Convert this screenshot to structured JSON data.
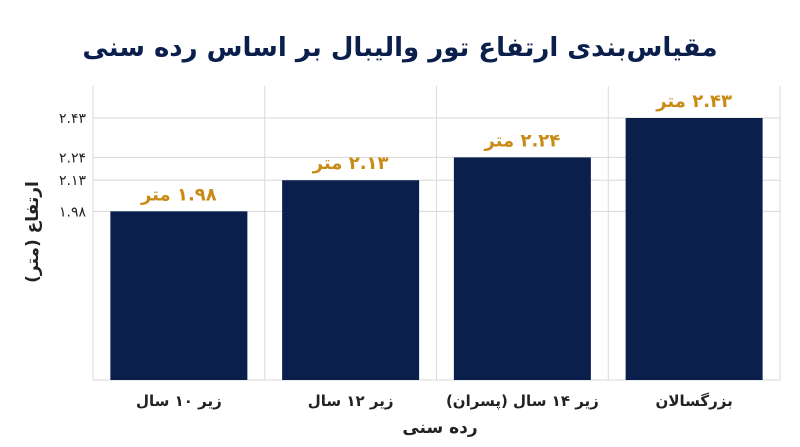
{
  "chart_data": {
    "type": "bar",
    "title": "مقیاس‌بندی ارتفاع تور والیبال بر اساس رده سنی",
    "xlabel": "رده سنی",
    "ylabel": "ارتفاع (متر)",
    "categories": [
      "زیر ۱۰ سال",
      "زیر ۱۲ سال",
      "زیر ۱۴ سال (پسران)",
      "بزرگسالان"
    ],
    "values": [
      1.98,
      2.13,
      2.24,
      2.43
    ],
    "data_labels": [
      "۱.۹۸ متر",
      "۲.۱۳ متر",
      "۲.۲۴ متر",
      "۲.۴۳ متر"
    ],
    "yticks": [
      1.98,
      2.13,
      2.24,
      2.43
    ],
    "ytick_labels": [
      "۱.۹۸",
      "۲.۱۳",
      "۲.۲۴",
      "۲.۴۳"
    ],
    "grid": true,
    "colors": {
      "bar": "#0b1f4d",
      "data_label": "#c98b16",
      "title": "#0b1f4d"
    }
  }
}
